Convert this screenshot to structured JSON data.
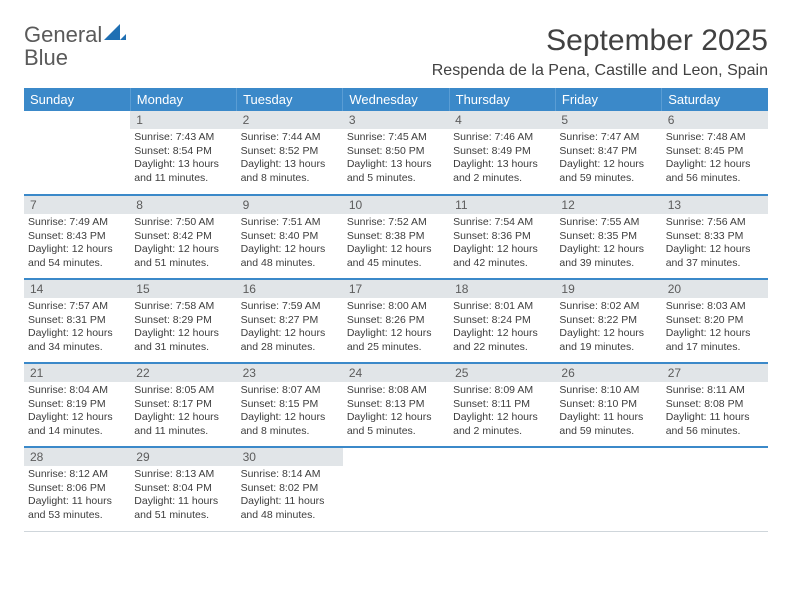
{
  "logo": {
    "text1": "General",
    "text2": "Blue"
  },
  "title": "September 2025",
  "location": "Respenda de la Pena, Castille and Leon, Spain",
  "colors": {
    "header_bg": "#3b89c9",
    "header_text": "#ffffff",
    "daynum_bg": "#e1e5e8",
    "daynum_text": "#5c5c5c",
    "body_text": "#3d3d3d",
    "row_divider": "#3b89c9",
    "title_text": "#414141",
    "logo_gray": "#5a5a5a",
    "logo_blue": "#2f7fbf"
  },
  "weekdays": [
    "Sunday",
    "Monday",
    "Tuesday",
    "Wednesday",
    "Thursday",
    "Friday",
    "Saturday"
  ],
  "weeks": [
    [
      {
        "day": "",
        "sunrise": "",
        "sunset": "",
        "daylight": ""
      },
      {
        "day": "1",
        "sunrise": "Sunrise: 7:43 AM",
        "sunset": "Sunset: 8:54 PM",
        "daylight": "Daylight: 13 hours and 11 minutes."
      },
      {
        "day": "2",
        "sunrise": "Sunrise: 7:44 AM",
        "sunset": "Sunset: 8:52 PM",
        "daylight": "Daylight: 13 hours and 8 minutes."
      },
      {
        "day": "3",
        "sunrise": "Sunrise: 7:45 AM",
        "sunset": "Sunset: 8:50 PM",
        "daylight": "Daylight: 13 hours and 5 minutes."
      },
      {
        "day": "4",
        "sunrise": "Sunrise: 7:46 AM",
        "sunset": "Sunset: 8:49 PM",
        "daylight": "Daylight: 13 hours and 2 minutes."
      },
      {
        "day": "5",
        "sunrise": "Sunrise: 7:47 AM",
        "sunset": "Sunset: 8:47 PM",
        "daylight": "Daylight: 12 hours and 59 minutes."
      },
      {
        "day": "6",
        "sunrise": "Sunrise: 7:48 AM",
        "sunset": "Sunset: 8:45 PM",
        "daylight": "Daylight: 12 hours and 56 minutes."
      }
    ],
    [
      {
        "day": "7",
        "sunrise": "Sunrise: 7:49 AM",
        "sunset": "Sunset: 8:43 PM",
        "daylight": "Daylight: 12 hours and 54 minutes."
      },
      {
        "day": "8",
        "sunrise": "Sunrise: 7:50 AM",
        "sunset": "Sunset: 8:42 PM",
        "daylight": "Daylight: 12 hours and 51 minutes."
      },
      {
        "day": "9",
        "sunrise": "Sunrise: 7:51 AM",
        "sunset": "Sunset: 8:40 PM",
        "daylight": "Daylight: 12 hours and 48 minutes."
      },
      {
        "day": "10",
        "sunrise": "Sunrise: 7:52 AM",
        "sunset": "Sunset: 8:38 PM",
        "daylight": "Daylight: 12 hours and 45 minutes."
      },
      {
        "day": "11",
        "sunrise": "Sunrise: 7:54 AM",
        "sunset": "Sunset: 8:36 PM",
        "daylight": "Daylight: 12 hours and 42 minutes."
      },
      {
        "day": "12",
        "sunrise": "Sunrise: 7:55 AM",
        "sunset": "Sunset: 8:35 PM",
        "daylight": "Daylight: 12 hours and 39 minutes."
      },
      {
        "day": "13",
        "sunrise": "Sunrise: 7:56 AM",
        "sunset": "Sunset: 8:33 PM",
        "daylight": "Daylight: 12 hours and 37 minutes."
      }
    ],
    [
      {
        "day": "14",
        "sunrise": "Sunrise: 7:57 AM",
        "sunset": "Sunset: 8:31 PM",
        "daylight": "Daylight: 12 hours and 34 minutes."
      },
      {
        "day": "15",
        "sunrise": "Sunrise: 7:58 AM",
        "sunset": "Sunset: 8:29 PM",
        "daylight": "Daylight: 12 hours and 31 minutes."
      },
      {
        "day": "16",
        "sunrise": "Sunrise: 7:59 AM",
        "sunset": "Sunset: 8:27 PM",
        "daylight": "Daylight: 12 hours and 28 minutes."
      },
      {
        "day": "17",
        "sunrise": "Sunrise: 8:00 AM",
        "sunset": "Sunset: 8:26 PM",
        "daylight": "Daylight: 12 hours and 25 minutes."
      },
      {
        "day": "18",
        "sunrise": "Sunrise: 8:01 AM",
        "sunset": "Sunset: 8:24 PM",
        "daylight": "Daylight: 12 hours and 22 minutes."
      },
      {
        "day": "19",
        "sunrise": "Sunrise: 8:02 AM",
        "sunset": "Sunset: 8:22 PM",
        "daylight": "Daylight: 12 hours and 19 minutes."
      },
      {
        "day": "20",
        "sunrise": "Sunrise: 8:03 AM",
        "sunset": "Sunset: 8:20 PM",
        "daylight": "Daylight: 12 hours and 17 minutes."
      }
    ],
    [
      {
        "day": "21",
        "sunrise": "Sunrise: 8:04 AM",
        "sunset": "Sunset: 8:19 PM",
        "daylight": "Daylight: 12 hours and 14 minutes."
      },
      {
        "day": "22",
        "sunrise": "Sunrise: 8:05 AM",
        "sunset": "Sunset: 8:17 PM",
        "daylight": "Daylight: 12 hours and 11 minutes."
      },
      {
        "day": "23",
        "sunrise": "Sunrise: 8:07 AM",
        "sunset": "Sunset: 8:15 PM",
        "daylight": "Daylight: 12 hours and 8 minutes."
      },
      {
        "day": "24",
        "sunrise": "Sunrise: 8:08 AM",
        "sunset": "Sunset: 8:13 PM",
        "daylight": "Daylight: 12 hours and 5 minutes."
      },
      {
        "day": "25",
        "sunrise": "Sunrise: 8:09 AM",
        "sunset": "Sunset: 8:11 PM",
        "daylight": "Daylight: 12 hours and 2 minutes."
      },
      {
        "day": "26",
        "sunrise": "Sunrise: 8:10 AM",
        "sunset": "Sunset: 8:10 PM",
        "daylight": "Daylight: 11 hours and 59 minutes."
      },
      {
        "day": "27",
        "sunrise": "Sunrise: 8:11 AM",
        "sunset": "Sunset: 8:08 PM",
        "daylight": "Daylight: 11 hours and 56 minutes."
      }
    ],
    [
      {
        "day": "28",
        "sunrise": "Sunrise: 8:12 AM",
        "sunset": "Sunset: 8:06 PM",
        "daylight": "Daylight: 11 hours and 53 minutes."
      },
      {
        "day": "29",
        "sunrise": "Sunrise: 8:13 AM",
        "sunset": "Sunset: 8:04 PM",
        "daylight": "Daylight: 11 hours and 51 minutes."
      },
      {
        "day": "30",
        "sunrise": "Sunrise: 8:14 AM",
        "sunset": "Sunset: 8:02 PM",
        "daylight": "Daylight: 11 hours and 48 minutes."
      },
      {
        "day": "",
        "sunrise": "",
        "sunset": "",
        "daylight": ""
      },
      {
        "day": "",
        "sunrise": "",
        "sunset": "",
        "daylight": ""
      },
      {
        "day": "",
        "sunrise": "",
        "sunset": "",
        "daylight": ""
      },
      {
        "day": "",
        "sunrise": "",
        "sunset": "",
        "daylight": ""
      }
    ]
  ]
}
